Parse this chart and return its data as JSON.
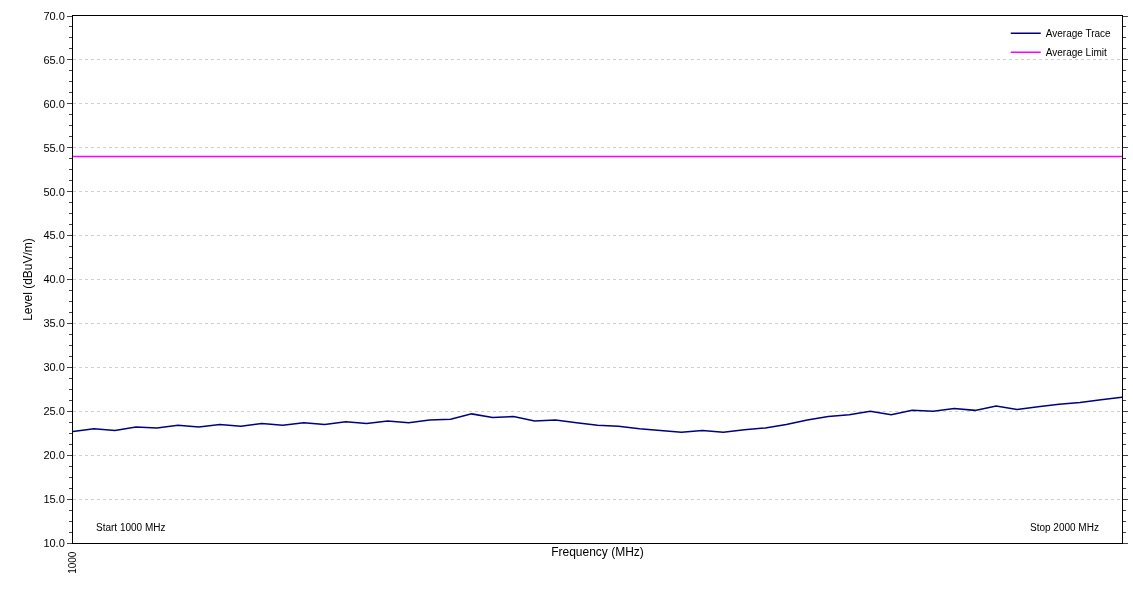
{
  "chart_data": {
    "type": "line",
    "xlabel": "Frequency (MHz)",
    "ylabel": "Level (dBuV/m)",
    "tick_labels": "y",
    "categories": [
      null,
      null,
      null,
      null,
      null,
      null,
      null,
      null,
      null,
      null,
      null,
      null,
      null,
      null,
      null,
      null,
      null,
      null,
      null,
      null,
      null,
      null,
      null,
      null,
      null,
      null,
      null,
      null,
      null,
      null,
      null,
      null,
      null,
      null,
      null,
      null,
      null,
      null,
      null,
      null,
      null,
      null,
      null,
      null,
      null,
      null,
      null,
      null,
      null,
      null,
      null
    ],
    "ylim": [
      10,
      70
    ],
    "yticks": [
      {
        "value": 10,
        "label": "10.0"
      },
      {
        "value": 15,
        "label": "15.0"
      },
      {
        "value": 20,
        "label": "20.0"
      },
      {
        "value": 25,
        "label": "25.0"
      },
      {
        "value": 30,
        "label": "30.0"
      },
      {
        "value": 35,
        "label": "35.0"
      },
      {
        "value": 40,
        "label": "40.0"
      },
      {
        "value": 45,
        "label": "45.0"
      },
      {
        "value": 50,
        "label": "50.0"
      },
      {
        "value": 55,
        "label": "55.0"
      },
      {
        "value": 60,
        "label": "60.0"
      },
      {
        "value": 65,
        "label": "65.0"
      },
      {
        "value": 70,
        "label": "70.0"
      }
    ],
    "grid": "y",
    "legend": "top right",
    "marker": "none",
    "line_style": "solid",
    "series": [
      {
        "name": "Average Trace",
        "color": "#000080",
        "values": [
          22.7,
          23.0,
          22.8,
          23.2,
          23.1,
          23.4,
          23.2,
          23.5,
          23.3,
          23.6,
          23.4,
          23.7,
          23.5,
          23.8,
          23.6,
          23.9,
          23.7,
          24.0,
          24.1,
          24.7,
          24.3,
          24.4,
          23.9,
          24.0,
          23.7,
          23.4,
          23.3,
          23.0,
          22.8,
          22.6,
          22.8,
          22.6,
          22.9,
          23.1,
          23.5,
          24.0,
          24.4,
          24.6,
          25.0,
          24.6,
          25.1,
          25.0,
          25.3,
          25.1,
          25.6,
          25.2,
          25.5,
          25.8,
          26.0,
          26.3,
          26.6
        ]
      },
      {
        "name": "Average Limit",
        "color": "#ff00ff",
        "values": [
          54,
          54,
          54,
          54,
          54,
          54,
          54,
          54,
          54,
          54,
          54,
          54,
          54,
          54,
          54,
          54,
          54,
          54,
          54,
          54,
          54,
          54,
          54,
          54,
          54,
          54,
          54,
          54,
          54,
          54,
          54,
          54,
          54,
          54,
          54,
          54,
          54,
          54,
          54,
          54,
          54,
          54,
          54,
          54,
          54,
          54,
          54,
          54,
          54,
          54,
          54
        ]
      }
    ],
    "annotations": [
      "Start 1000 MHz",
      "Stop 2000 MHz",
      "1000"
    ]
  }
}
